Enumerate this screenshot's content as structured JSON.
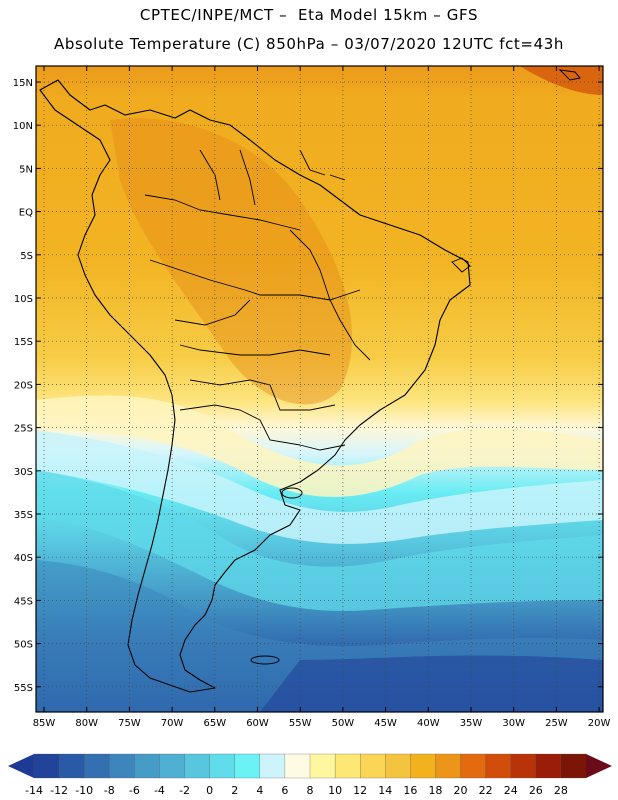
{
  "header": {
    "line1": "CPTEC/INPE/MCT –  Eta Model 15km – GFS",
    "line2": "Absolute Temperature (C) 850hPa – 03/07/2020 12UTC fct=43h"
  },
  "map": {
    "lat_labels": [
      "15N",
      "10N",
      "5N",
      "EQ",
      "5S",
      "10S",
      "15S",
      "20S",
      "25S",
      "30S",
      "35S",
      "40S",
      "45S",
      "50S",
      "55S"
    ],
    "lon_labels": [
      "85W",
      "80W",
      "75W",
      "70W",
      "65W",
      "60W",
      "55W",
      "50W",
      "45W",
      "40W",
      "35W",
      "30W",
      "25W",
      "20W"
    ]
  },
  "colorbar": {
    "labels": [
      "-14",
      "-12",
      "-10",
      "-8",
      "-6",
      "-4",
      "-2",
      "0",
      "2",
      "4",
      "6",
      "8",
      "10",
      "12",
      "14",
      "16",
      "18",
      "20",
      "22",
      "24",
      "26",
      "28"
    ],
    "colors": [
      "#21439a",
      "#2a5aa6",
      "#336fb1",
      "#3c86bd",
      "#459cc7",
      "#4fb0d3",
      "#58c6df",
      "#60dcea",
      "#6af2f5",
      "#cdf4fb",
      "#fffbe3",
      "#fff79f",
      "#fde775",
      "#fbd656",
      "#f5c43e",
      "#f1b21e",
      "#ec9619",
      "#e36a0e",
      "#d04d0a",
      "#b83308",
      "#9a1d07",
      "#7b1506"
    ],
    "left_cap": "#1f3a94",
    "right_cap": "#6b0a18"
  }
}
